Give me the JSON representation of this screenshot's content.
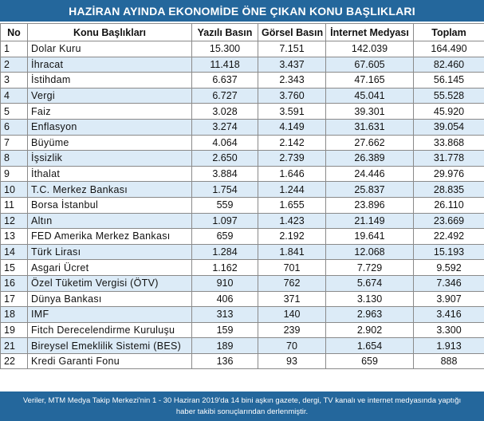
{
  "title": "HAZİRAN AYINDA EKONOMİDE ÖNE ÇIKAN KONU BAŞLIKLARI",
  "headers": {
    "no": "No",
    "topic": "Konu Başlıkları",
    "print": "Yazılı Basın",
    "visual": "Görsel Basın",
    "internet": "İnternet Medyası",
    "total": "Toplam"
  },
  "rows": [
    {
      "no": "1",
      "topic": "Dolar Kuru",
      "print": "15.300",
      "visual": "7.151",
      "internet": "142.039",
      "total": "164.490"
    },
    {
      "no": "2",
      "topic": "İhracat",
      "print": "11.418",
      "visual": "3.437",
      "internet": "67.605",
      "total": "82.460"
    },
    {
      "no": "3",
      "topic": "İstihdam",
      "print": "6.637",
      "visual": "2.343",
      "internet": "47.165",
      "total": "56.145"
    },
    {
      "no": "4",
      "topic": "Vergi",
      "print": "6.727",
      "visual": "3.760",
      "internet": "45.041",
      "total": "55.528"
    },
    {
      "no": "5",
      "topic": "Faiz",
      "print": "3.028",
      "visual": "3.591",
      "internet": "39.301",
      "total": "45.920"
    },
    {
      "no": "6",
      "topic": "Enflasyon",
      "print": "3.274",
      "visual": "4.149",
      "internet": "31.631",
      "total": "39.054"
    },
    {
      "no": "7",
      "topic": "Büyüme",
      "print": "4.064",
      "visual": "2.142",
      "internet": "27.662",
      "total": "33.868"
    },
    {
      "no": "8",
      "topic": "İşsizlik",
      "print": "2.650",
      "visual": "2.739",
      "internet": "26.389",
      "total": "31.778"
    },
    {
      "no": "9",
      "topic": "İthalat",
      "print": "3.884",
      "visual": "1.646",
      "internet": "24.446",
      "total": "29.976"
    },
    {
      "no": "10",
      "topic": "T.C. Merkez Bankası",
      "print": "1.754",
      "visual": "1.244",
      "internet": "25.837",
      "total": "28.835"
    },
    {
      "no": "11",
      "topic": "Borsa İstanbul",
      "print": "559",
      "visual": "1.655",
      "internet": "23.896",
      "total": "26.110"
    },
    {
      "no": "12",
      "topic": "Altın",
      "print": "1.097",
      "visual": "1.423",
      "internet": "21.149",
      "total": "23.669"
    },
    {
      "no": "13",
      "topic": "FED Amerika Merkez Bankası",
      "print": "659",
      "visual": "2.192",
      "internet": "19.641",
      "total": "22.492"
    },
    {
      "no": "14",
      "topic": "Türk Lirası",
      "print": "1.284",
      "visual": "1.841",
      "internet": "12.068",
      "total": "15.193"
    },
    {
      "no": "15",
      "topic": "Asgari Ücret",
      "print": "1.162",
      "visual": "701",
      "internet": "7.729",
      "total": "9.592"
    },
    {
      "no": "16",
      "topic": "Özel Tüketim Vergisi (ÖTV)",
      "print": "910",
      "visual": "762",
      "internet": "5.674",
      "total": "7.346"
    },
    {
      "no": "17",
      "topic": "Dünya Bankası",
      "print": "406",
      "visual": "371",
      "internet": "3.130",
      "total": "3.907"
    },
    {
      "no": "18",
      "topic": "IMF",
      "print": "313",
      "visual": "140",
      "internet": "2.963",
      "total": "3.416"
    },
    {
      "no": "19",
      "topic": "Fitch Derecelendirme Kuruluşu",
      "print": "159",
      "visual": "239",
      "internet": "2.902",
      "total": "3.300"
    },
    {
      "no": "21",
      "topic": "Bireysel Emeklilik Sistemi (BES)",
      "print": "189",
      "visual": "70",
      "internet": "1.654",
      "total": "1.913"
    },
    {
      "no": "22",
      "topic": "Kredi Garanti Fonu",
      "print": "136",
      "visual": "93",
      "internet": "659",
      "total": "888"
    }
  ],
  "footer": {
    "line1": "Veriler, MTM Medya Takip Merkezi'nin 1 - 30 Haziran 2019'da 14 bini aşkın gazete, dergi, TV kanalı ve internet medyasında yaptığı",
    "line2": "haber takibi sonuçlarından derlenmiştir."
  },
  "colors": {
    "banner": "#24679c",
    "row_alt": "#dcebf7",
    "grid": "#8a8a8a"
  }
}
